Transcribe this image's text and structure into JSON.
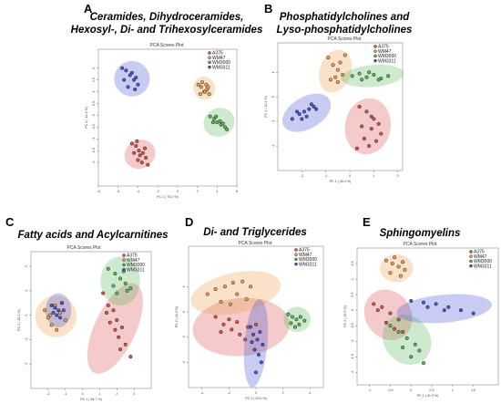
{
  "panels": [
    {
      "letter": "A",
      "title_lines": [
        "Ceramides, Dihydroceramides,",
        "Hexosyl-, Di- and Trihexosylceramides"
      ],
      "plot_title": "PCA Scores Plot",
      "xlabel": "PC 1 ( 75.3 %)",
      "ylabel": "PC 2 ( 13.3 %)",
      "legend": true
    },
    {
      "letter": "B",
      "title_lines": [
        "Phosphatidylcholines and",
        "Lyso-phosphatidylcholines"
      ],
      "plot_title": "PCA Scores Plot",
      "xlabel": "PC 1 ( 45.4 %)",
      "ylabel": "PC 2 ( 12.3 %)",
      "legend": true
    },
    {
      "letter": "C",
      "title_lines": [
        "Fatty acids and Acylcarnitines"
      ],
      "plot_title": "PCA Scores Plot",
      "xlabel": "PC 1 ( 48.7 %)",
      "ylabel": "PC 2 ( 18.3 %)",
      "legend": true
    },
    {
      "letter": "D",
      "title_lines": [
        "Di- and Triglycerides"
      ],
      "plot_title": "PCA Scores Plot",
      "xlabel": "PC 1 ( 53.6 %)",
      "ylabel": "PC 2 ( 22.3 %)",
      "legend": true
    },
    {
      "letter": "E",
      "title_lines": [
        "Sphingomyelins"
      ],
      "plot_title": "PCA Scores Plot",
      "xlabel": "PC 1 ( 41.9 %)",
      "ylabel": "PC 2 ( 20.3 %)",
      "legend": true
    }
  ],
  "legend_entries": [
    "A375",
    "WM47",
    "WM3000",
    "WM3311"
  ],
  "colors": {
    "A375": "#d9534f",
    "WM47": "#f0a050",
    "WM3000": "#5cb85c",
    "WM3311": "#4a55d8"
  },
  "chart_data": [
    {
      "type": "scatter",
      "title": "PCA Scores Plot",
      "xlabel": "PC 1 ( 75.3 %)",
      "ylabel": "PC 2 ( 13.3 %)",
      "xlim": [
        -8,
        6
      ],
      "ylim": [
        -3,
        2.8
      ],
      "xticks": [
        -8,
        -6,
        -4,
        -2,
        0,
        2,
        4,
        6
      ],
      "yticks": [
        -2,
        -1.5,
        -1,
        -0.5,
        0,
        0.5,
        1,
        1.5,
        2
      ],
      "series": [
        {
          "name": "A375",
          "ellipse": {
            "cx": -3.8,
            "cy": -1.65,
            "rx": 1.6,
            "ry": 0.6,
            "angle": -30
          },
          "x": [
            -4.6,
            -4.2,
            -3.9,
            -3.5,
            -3.2,
            -4.0,
            -3.6,
            -3.3,
            -4.4,
            -3.0,
            -3.8,
            -4.1
          ],
          "y": [
            -1.2,
            -1.3,
            -1.5,
            -1.6,
            -1.8,
            -1.9,
            -2.0,
            -1.4,
            -1.6,
            -2.1,
            -1.7,
            -1.1
          ]
        },
        {
          "name": "WM47",
          "ellipse": {
            "cx": 2.7,
            "cy": 1.15,
            "rx": 1.1,
            "ry": 0.5,
            "angle": -20
          },
          "x": [
            2.1,
            2.4,
            2.7,
            3.0,
            3.2,
            2.5,
            2.9,
            2.3,
            3.1,
            2.8
          ],
          "y": [
            1.3,
            1.2,
            1.0,
            1.1,
            0.9,
            1.4,
            1.3,
            0.9,
            1.2,
            1.0
          ]
        },
        {
          "name": "WM3000",
          "ellipse": {
            "cx": 4.2,
            "cy": -0.3,
            "rx": 1.6,
            "ry": 0.6,
            "angle": -25
          },
          "x": [
            3.3,
            3.7,
            4.0,
            4.4,
            4.8,
            3.9,
            4.3,
            4.6,
            5.0,
            3.6
          ],
          "y": [
            -0.05,
            -0.15,
            -0.3,
            -0.4,
            -0.5,
            -0.05,
            -0.25,
            -0.35,
            -0.6,
            -0.3
          ]
        },
        {
          "name": "WM3311",
          "ellipse": {
            "cx": -4.6,
            "cy": 1.55,
            "rx": 1.8,
            "ry": 0.75,
            "angle": -15
          },
          "x": [
            -5.6,
            -5.2,
            -4.8,
            -4.4,
            -4.0,
            -5.0,
            -4.6,
            -4.2,
            -5.4,
            -4.3
          ],
          "y": [
            2.0,
            1.9,
            1.7,
            1.5,
            1.3,
            1.2,
            1.8,
            1.6,
            1.5,
            1.1
          ]
        }
      ]
    },
    {
      "type": "scatter",
      "title": "PCA Scores Plot",
      "xlabel": "PC 1 ( 45.4 %)",
      "ylabel": "PC 2 ( 12.3 %)",
      "xlim": [
        -3,
        2.2
      ],
      "ylim": [
        -3,
        2.2
      ],
      "xticks": [
        -2,
        -1,
        0,
        1,
        2
      ],
      "yticks": [
        -2,
        -1,
        0,
        1
      ],
      "series": [
        {
          "name": "A375",
          "ellipse": {
            "cx": 0.75,
            "cy": -1.2,
            "rx": 0.95,
            "ry": 1.15,
            "angle": 10
          },
          "x": [
            0.4,
            0.7,
            1.0,
            1.2,
            0.5,
            0.9,
            1.3,
            0.6,
            1.1,
            0.8,
            0.3,
            0.9
          ],
          "y": [
            -0.4,
            -0.6,
            -0.9,
            -1.1,
            -1.2,
            -1.3,
            -1.5,
            -1.7,
            -1.8,
            -2.0,
            -2.1,
            -0.8
          ]
        },
        {
          "name": "WM47",
          "ellipse": {
            "cx": -0.6,
            "cy": 1.05,
            "rx": 0.65,
            "ry": 0.9,
            "angle": 20
          },
          "x": [
            -0.9,
            -0.7,
            -0.5,
            -0.3,
            -0.6,
            -0.4,
            -0.8,
            -0.2,
            -0.5
          ],
          "y": [
            1.6,
            1.3,
            1.1,
            0.9,
            0.8,
            1.4,
            0.7,
            1.7,
            0.6
          ]
        },
        {
          "name": "WM3000",
          "ellipse": {
            "cx": 0.95,
            "cy": 0.85,
            "rx": 1.3,
            "ry": 0.45,
            "angle": -5
          },
          "x": [
            0.1,
            0.4,
            0.7,
            1.0,
            1.3,
            1.6,
            0.8,
            1.2,
            0.5
          ],
          "y": [
            0.85,
            0.95,
            0.8,
            0.9,
            0.75,
            0.85,
            1.0,
            0.7,
            0.7
          ]
        },
        {
          "name": "WM3311",
          "ellipse": {
            "cx": -1.8,
            "cy": -0.65,
            "rx": 1.1,
            "ry": 0.65,
            "angle": -30
          },
          "x": [
            -2.4,
            -2.1,
            -1.9,
            -1.7,
            -1.5,
            -2.0,
            -1.8,
            -1.6,
            -2.2,
            -1.4
          ],
          "y": [
            -0.9,
            -0.7,
            -0.6,
            -0.5,
            -0.4,
            -0.9,
            -0.8,
            -0.3,
            -0.6,
            -0.5
          ]
        }
      ]
    },
    {
      "type": "scatter",
      "title": "PCA Scores Plot",
      "xlabel": "PC 1 ( 48.7 %)",
      "ylabel": "PC 2 ( 18.3 %)",
      "xlim": [
        -3,
        4
      ],
      "ylim": [
        -3,
        2.6
      ],
      "xticks": [
        -2,
        -1,
        0,
        1,
        2,
        3
      ],
      "yticks": [
        -2,
        -1,
        0,
        1,
        2
      ],
      "series": [
        {
          "name": "A375",
          "ellipse": {
            "cx": 1.9,
            "cy": -0.55,
            "rx": 1.2,
            "ry": 2.0,
            "angle": 25
          },
          "x": [
            1.2,
            1.5,
            1.8,
            2.0,
            2.3,
            1.6,
            2.1,
            2.5,
            1.9,
            2.8,
            1.4,
            2.2
          ],
          "y": [
            0.9,
            0.4,
            0.2,
            -0.2,
            -0.5,
            -0.3,
            -0.9,
            -1.2,
            -0.6,
            -1.7,
            0.1,
            -1.4
          ]
        },
        {
          "name": "WM47",
          "ellipse": {
            "cx": -1.55,
            "cy": -0.05,
            "rx": 1.2,
            "ry": 0.85,
            "angle": 25
          },
          "x": [
            -2.2,
            -1.9,
            -1.6,
            -1.3,
            -1.0,
            -1.8,
            -1.5,
            -1.2,
            -2.0
          ],
          "y": [
            0.2,
            0.0,
            0.4,
            0.1,
            -0.2,
            -0.4,
            -0.6,
            0.5,
            -0.1
          ]
        },
        {
          "name": "WM3000",
          "ellipse": {
            "cx": 2.2,
            "cy": 1.4,
            "rx": 1.15,
            "ry": 1.0,
            "angle": 0
          },
          "x": [
            1.5,
            1.9,
            2.2,
            2.5,
            2.8,
            1.8,
            2.4,
            2.0,
            2.6
          ],
          "y": [
            1.9,
            1.7,
            1.5,
            1.3,
            1.1,
            1.2,
            1.8,
            0.9,
            1.0
          ]
        },
        {
          "name": "WM3311",
          "ellipse": {
            "cx": -1.4,
            "cy": 0.2,
            "rx": 0.75,
            "ry": 0.7,
            "angle": 0
          },
          "x": [
            -1.8,
            -1.6,
            -1.4,
            -1.2,
            -1.5,
            -1.3,
            -1.7,
            -1.1
          ],
          "y": [
            0.4,
            0.3,
            0.2,
            0.5,
            0.0,
            -0.1,
            0.1,
            0.2
          ]
        }
      ]
    },
    {
      "type": "scatter",
      "title": "PCA Scores Plot",
      "xlabel": "PC 1 ( 53.6 %)",
      "ylabel": "PC 2 ( 22.3 %)",
      "xlim": [
        -5,
        5
      ],
      "ylim": [
        -3,
        2.6
      ],
      "xticks": [
        -4,
        -2,
        0,
        2,
        4
      ],
      "yticks": [
        -2,
        -1,
        0,
        1
      ],
      "series": [
        {
          "name": "A375",
          "ellipse": {
            "cx": -1.1,
            "cy": -0.6,
            "rx": 3.6,
            "ry": 1.15,
            "angle": -5
          },
          "x": [
            -3.0,
            -2.4,
            -1.8,
            -1.2,
            -0.6,
            -2.0,
            -1.4,
            -0.8,
            -2.6,
            0.0
          ],
          "y": [
            -0.2,
            -0.5,
            -0.7,
            -0.9,
            -0.6,
            -0.3,
            -0.4,
            -1.1,
            -0.8,
            -0.5
          ]
        },
        {
          "name": "WM47",
          "ellipse": {
            "cx": -1.5,
            "cy": 0.75,
            "rx": 3.4,
            "ry": 0.8,
            "angle": -12
          },
          "x": [
            -3.6,
            -3.0,
            -2.3,
            -1.7,
            -1.0,
            -0.4,
            -2.6,
            -1.4,
            -0.7,
            -1.9
          ],
          "y": [
            0.7,
            0.9,
            1.0,
            1.15,
            1.2,
            1.0,
            0.4,
            0.7,
            0.5,
            0.3
          ]
        },
        {
          "name": "WM3000",
          "ellipse": {
            "cx": 3.05,
            "cy": -0.3,
            "rx": 1.0,
            "ry": 0.5,
            "angle": 0
          },
          "x": [
            2.4,
            2.7,
            3.0,
            3.3,
            3.6,
            2.6,
            3.2,
            2.9
          ],
          "y": [
            -0.1,
            -0.2,
            -0.3,
            -0.2,
            -0.35,
            -0.45,
            -0.5,
            -0.6
          ]
        },
        {
          "name": "WM3311",
          "ellipse": {
            "cx": 0.0,
            "cy": -1.25,
            "rx": 0.85,
            "ry": 1.75,
            "angle": 5
          },
          "x": [
            -0.4,
            -0.2,
            0.1,
            0.3,
            0.5,
            -0.1,
            0.2,
            0.4,
            -0.3,
            0.0
          ],
          "y": [
            -0.6,
            -0.9,
            -1.1,
            -0.8,
            -1.3,
            -1.5,
            -1.7,
            -2.0,
            -1.2,
            -2.4
          ]
        }
      ]
    },
    {
      "type": "scatter",
      "title": "PCA Scores Plot",
      "xlabel": "PC 1 ( 41.9 %)",
      "ylabel": "PC 2 ( 20.3 %)",
      "xlim": [
        -1.3,
        2.1
      ],
      "ylim": [
        -2.4,
        2.0
      ],
      "xticks": [
        -1,
        -0.5,
        0,
        0.5,
        1,
        1.5
      ],
      "yticks": [
        -2,
        -1.5,
        -1,
        -0.5,
        0,
        0.5,
        1,
        1.5
      ],
      "series": [
        {
          "name": "A375",
          "ellipse": {
            "cx": -0.55,
            "cy": -0.15,
            "rx": 0.55,
            "ry": 0.85,
            "angle": -35
          },
          "x": [
            -0.9,
            -0.7,
            -0.5,
            -0.3,
            -0.6,
            -0.4,
            -0.8,
            -0.2
          ],
          "y": [
            0.2,
            0.1,
            -0.1,
            -0.3,
            -0.4,
            -0.6,
            0.0,
            -0.7
          ]
        },
        {
          "name": "WM47",
          "ellipse": {
            "cx": -0.35,
            "cy": 1.35,
            "rx": 0.4,
            "ry": 0.45,
            "angle": 0
          },
          "x": [
            -0.6,
            -0.45,
            -0.3,
            -0.15,
            -0.5,
            -0.25,
            -0.4,
            -0.2
          ],
          "y": [
            1.6,
            1.5,
            1.4,
            1.3,
            1.2,
            1.1,
            1.7,
            1.55
          ]
        },
        {
          "name": "WM3000",
          "ellipse": {
            "cx": -0.1,
            "cy": -0.95,
            "rx": 0.55,
            "ry": 0.85,
            "angle": -40
          },
          "x": [
            -0.5,
            -0.3,
            -0.1,
            0.1,
            0.2,
            -0.2,
            0.0,
            0.3
          ],
          "y": [
            -0.5,
            -0.7,
            -0.9,
            -1.1,
            -1.3,
            -1.2,
            -1.5,
            -1.7
          ]
        },
        {
          "name": "WM3311",
          "ellipse": {
            "cx": 0.8,
            "cy": 0.05,
            "rx": 1.15,
            "ry": 0.45,
            "angle": -5
          },
          "x": [
            0.0,
            0.3,
            0.6,
            0.9,
            1.2,
            1.5,
            0.4,
            0.8
          ],
          "y": [
            0.3,
            0.25,
            0.2,
            0.1,
            0.0,
            -0.1,
            0.1,
            0.0
          ]
        }
      ]
    }
  ]
}
